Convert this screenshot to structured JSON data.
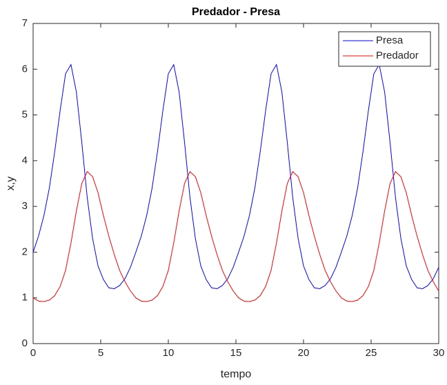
{
  "chart_data": {
    "type": "line",
    "title": "Predador - Presa",
    "x_label": "tempo",
    "y_label": "x,y",
    "x": [
      0,
      0.4,
      0.8,
      1.2,
      1.6,
      2,
      2.4,
      2.8,
      3.2,
      3.6,
      4,
      4.4,
      4.8,
      5.2,
      5.6,
      6,
      6.4,
      6.8,
      7.2,
      7.6,
      8,
      8.4,
      8.8,
      9.2,
      9.6,
      10,
      10.4,
      10.8,
      11.2,
      11.6,
      12,
      12.4,
      12.8,
      13.2,
      13.6,
      14,
      14.4,
      14.8,
      15.2,
      15.6,
      16,
      16.4,
      16.8,
      17.2,
      17.6,
      18,
      18.4,
      18.8,
      19.2,
      19.6,
      20,
      20.4,
      20.8,
      21.2,
      21.6,
      22,
      22.4,
      22.8,
      23.2,
      23.6,
      24,
      24.4,
      24.8,
      25.2,
      25.6,
      26,
      26.4,
      26.8,
      27.2,
      27.6,
      28,
      28.4,
      28.8,
      29.2,
      29.6,
      30
    ],
    "series": [
      {
        "name": "Presa",
        "color": "#0000ff",
        "values": [
          2.0,
          2.35,
          2.8,
          3.4,
          4.2,
          5.1,
          5.9,
          6.1,
          5.5,
          4.4,
          3.2,
          2.3,
          1.7,
          1.4,
          1.22,
          1.2,
          1.27,
          1.42,
          1.67,
          2.0,
          2.35,
          2.8,
          3.4,
          4.2,
          5.1,
          5.9,
          6.1,
          5.5,
          4.4,
          3.2,
          2.3,
          1.7,
          1.4,
          1.22,
          1.2,
          1.27,
          1.42,
          1.67,
          2.0,
          2.35,
          2.8,
          3.4,
          4.2,
          5.1,
          5.9,
          6.1,
          5.5,
          4.4,
          3.2,
          2.3,
          1.7,
          1.4,
          1.22,
          1.2,
          1.27,
          1.42,
          1.67,
          2.0,
          2.35,
          2.8,
          3.4,
          4.2,
          5.1,
          5.9,
          6.1,
          5.5,
          4.4,
          3.2,
          2.3,
          1.7,
          1.4,
          1.22,
          1.2,
          1.27,
          1.42,
          1.67
        ]
      },
      {
        "name": "Predador",
        "color": "#ff0000",
        "values": [
          1.0,
          0.93,
          0.92,
          0.95,
          1.05,
          1.25,
          1.6,
          2.2,
          2.9,
          3.5,
          3.76,
          3.65,
          3.3,
          2.8,
          2.35,
          1.95,
          1.6,
          1.35,
          1.15,
          1.0,
          0.93,
          0.92,
          0.95,
          1.05,
          1.25,
          1.6,
          2.2,
          2.9,
          3.5,
          3.76,
          3.65,
          3.3,
          2.8,
          2.35,
          1.95,
          1.6,
          1.35,
          1.15,
          1.0,
          0.93,
          0.92,
          0.95,
          1.05,
          1.25,
          1.6,
          2.2,
          2.9,
          3.5,
          3.76,
          3.65,
          3.3,
          2.8,
          2.35,
          1.95,
          1.6,
          1.35,
          1.15,
          1.0,
          0.93,
          0.92,
          0.95,
          1.05,
          1.25,
          1.6,
          2.2,
          2.9,
          3.5,
          3.76,
          3.65,
          3.3,
          2.8,
          2.35,
          1.95,
          1.6,
          1.35,
          1.15
        ]
      }
    ],
    "xlim": [
      0,
      30
    ],
    "xticks": [
      0,
      5,
      10,
      15,
      20,
      25,
      30
    ],
    "ylim": [
      0,
      7
    ],
    "yticks": [
      0,
      1,
      2,
      3,
      4,
      5,
      6,
      7
    ],
    "legend": "northeast",
    "grid": false
  }
}
